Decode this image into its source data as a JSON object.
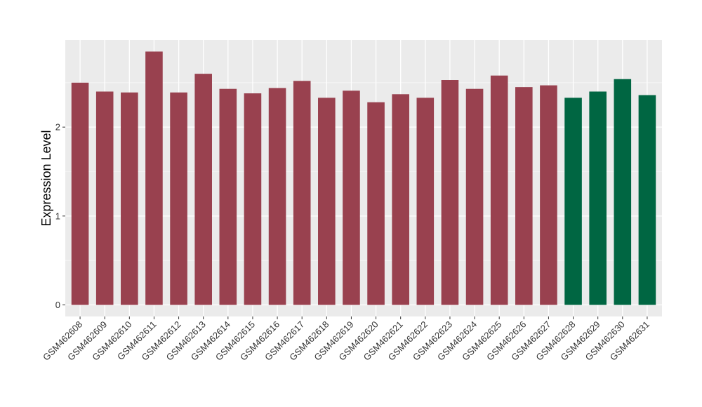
{
  "chart_data": {
    "type": "bar",
    "title": "",
    "xlabel": "",
    "ylabel": "Expression Level",
    "ylim": [
      -0.13,
      2.98
    ],
    "yticks": [
      0,
      1,
      2
    ],
    "grid": true,
    "legend": "none",
    "panel_background": "#ebebeb",
    "categories": [
      "GSM462608",
      "GSM462609",
      "GSM462610",
      "GSM462611",
      "GSM462612",
      "GSM462613",
      "GSM462614",
      "GSM462615",
      "GSM462616",
      "GSM462617",
      "GSM462618",
      "GSM462619",
      "GSM462620",
      "GSM462621",
      "GSM462622",
      "GSM462623",
      "GSM462624",
      "GSM462625",
      "GSM462626",
      "GSM462627",
      "GSM462628",
      "GSM462629",
      "GSM462630",
      "GSM462631"
    ],
    "values": [
      2.5,
      2.4,
      2.39,
      2.85,
      2.39,
      2.6,
      2.43,
      2.38,
      2.44,
      2.52,
      2.33,
      2.41,
      2.28,
      2.37,
      2.33,
      2.53,
      2.43,
      2.58,
      2.45,
      2.47,
      2.33,
      2.4,
      2.54,
      2.36
    ],
    "bar_colors": [
      "#99414f",
      "#99414f",
      "#99414f",
      "#99414f",
      "#99414f",
      "#99414f",
      "#99414f",
      "#99414f",
      "#99414f",
      "#99414f",
      "#99414f",
      "#99414f",
      "#99414f",
      "#99414f",
      "#99414f",
      "#99414f",
      "#99414f",
      "#99414f",
      "#99414f",
      "#99414f",
      "#006642",
      "#006642",
      "#006642",
      "#006642"
    ]
  }
}
